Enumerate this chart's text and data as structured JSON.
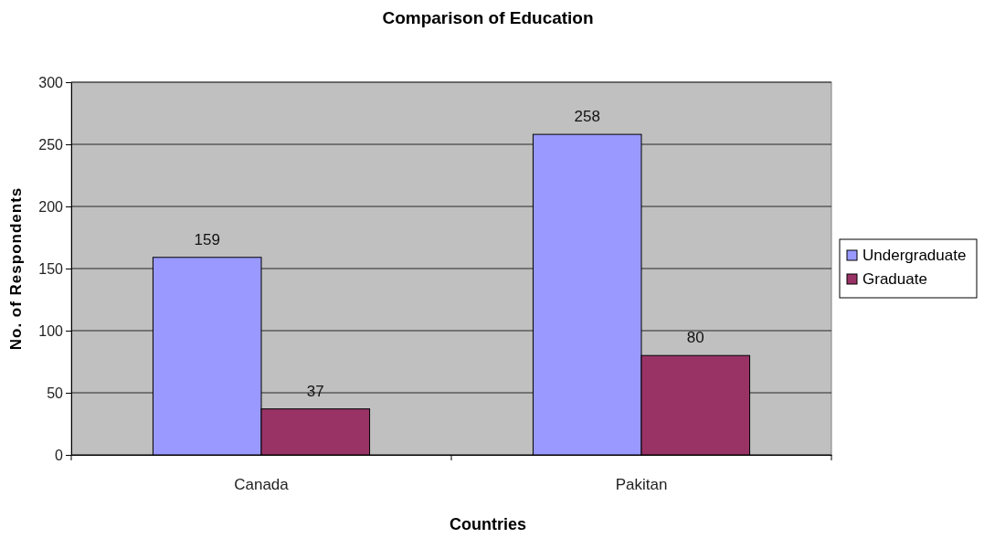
{
  "chart_data": {
    "type": "bar",
    "title": "Comparison of Education",
    "xlabel": "Countries",
    "ylabel": "No. of Respondents",
    "categories": [
      "Canada",
      "Pakitan"
    ],
    "series": [
      {
        "name": "Undergraduate",
        "color": "#9999ff",
        "values": [
          159,
          258
        ]
      },
      {
        "name": "Graduate",
        "color": "#993366",
        "values": [
          37,
          80
        ]
      }
    ],
    "ylim": [
      0,
      300
    ],
    "yticks": [
      0,
      50,
      100,
      150,
      200,
      250,
      300
    ],
    "grid": "y",
    "legend": "right",
    "data_labels": true
  }
}
